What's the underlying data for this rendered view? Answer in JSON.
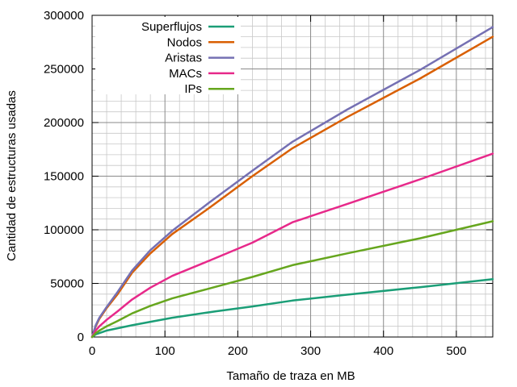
{
  "chart_data": {
    "type": "line",
    "xlabel": "Tamaño de traza en MB",
    "ylabel": "Cantidad de estructuras usadas",
    "xlim": [
      0,
      550
    ],
    "ylim": [
      0,
      300000
    ],
    "x_ticks": [
      "0",
      "100",
      "200",
      "300",
      "400",
      "500"
    ],
    "y_ticks": [
      "0",
      "50000",
      "100000",
      "150000",
      "200000",
      "250000",
      "300000"
    ],
    "grid": true,
    "legend_position": "top-left",
    "series": [
      {
        "name": "Superflujos",
        "color": "#1b9e77",
        "points": [
          [
            0,
            0
          ],
          [
            5,
            2500
          ],
          [
            20,
            6000
          ],
          [
            55,
            11000
          ],
          [
            110,
            18000
          ],
          [
            170,
            24000
          ],
          [
            220,
            28500
          ],
          [
            275,
            34000
          ],
          [
            350,
            39500
          ],
          [
            450,
            46500
          ],
          [
            550,
            54000
          ]
        ]
      },
      {
        "name": "Nodos",
        "color": "#d95f02",
        "points": [
          [
            0,
            0
          ],
          [
            5,
            10000
          ],
          [
            10,
            17000
          ],
          [
            20,
            27000
          ],
          [
            35,
            40000
          ],
          [
            55,
            60000
          ],
          [
            80,
            78000
          ],
          [
            110,
            96000
          ],
          [
            160,
            120000
          ],
          [
            220,
            150000
          ],
          [
            275,
            176000
          ],
          [
            350,
            205000
          ],
          [
            450,
            241000
          ],
          [
            550,
            280000
          ]
        ]
      },
      {
        "name": "Aristas",
        "color": "#7570b3",
        "points": [
          [
            0,
            0
          ],
          [
            5,
            11000
          ],
          [
            10,
            18000
          ],
          [
            20,
            28000
          ],
          [
            35,
            42000
          ],
          [
            55,
            62000
          ],
          [
            80,
            81000
          ],
          [
            110,
            99000
          ],
          [
            160,
            125000
          ],
          [
            220,
            155000
          ],
          [
            275,
            182000
          ],
          [
            350,
            212000
          ],
          [
            450,
            249000
          ],
          [
            550,
            289000
          ]
        ]
      },
      {
        "name": "MACs",
        "color": "#e7298a",
        "points": [
          [
            0,
            0
          ],
          [
            5,
            6000
          ],
          [
            10,
            10000
          ],
          [
            20,
            16000
          ],
          [
            35,
            24000
          ],
          [
            55,
            35000
          ],
          [
            80,
            46000
          ],
          [
            110,
            57000
          ],
          [
            160,
            71000
          ],
          [
            220,
            88000
          ],
          [
            275,
            107000
          ],
          [
            350,
            124000
          ],
          [
            450,
            147000
          ],
          [
            550,
            171000
          ]
        ]
      },
      {
        "name": "IPs",
        "color": "#66a61e",
        "points": [
          [
            0,
            0
          ],
          [
            5,
            3500
          ],
          [
            10,
            6000
          ],
          [
            20,
            10000
          ],
          [
            35,
            15000
          ],
          [
            55,
            22000
          ],
          [
            80,
            29000
          ],
          [
            110,
            36000
          ],
          [
            160,
            45000
          ],
          [
            220,
            56000
          ],
          [
            275,
            67000
          ],
          [
            350,
            78000
          ],
          [
            450,
            92000
          ],
          [
            550,
            108000
          ]
        ]
      }
    ]
  }
}
